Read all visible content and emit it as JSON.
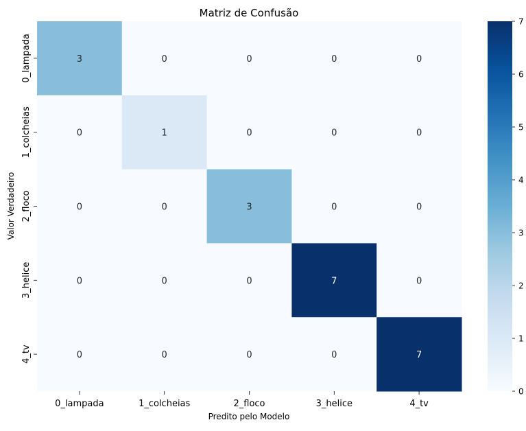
{
  "chart_data": {
    "type": "heatmap",
    "title": "Matriz de Confusão",
    "xlabel": "Predito pelo Modelo",
    "ylabel": "Valor Verdadeiro",
    "x_categories": [
      "0_lampada",
      "1_colcheias",
      "2_floco",
      "3_helice",
      "4_tv"
    ],
    "y_categories": [
      "0_lampada",
      "1_colcheias",
      "2_floco",
      "3_helice",
      "4_tv"
    ],
    "matrix": [
      [
        3,
        0,
        0,
        0,
        0
      ],
      [
        0,
        1,
        0,
        0,
        0
      ],
      [
        0,
        0,
        3,
        0,
        0
      ],
      [
        0,
        0,
        0,
        7,
        0
      ],
      [
        0,
        0,
        0,
        0,
        7
      ]
    ],
    "colorbar": {
      "range": [
        0,
        7
      ],
      "ticks": [
        0,
        1,
        2,
        3,
        4,
        5,
        6,
        7
      ],
      "colormap": "Blues"
    },
    "grid": false
  }
}
